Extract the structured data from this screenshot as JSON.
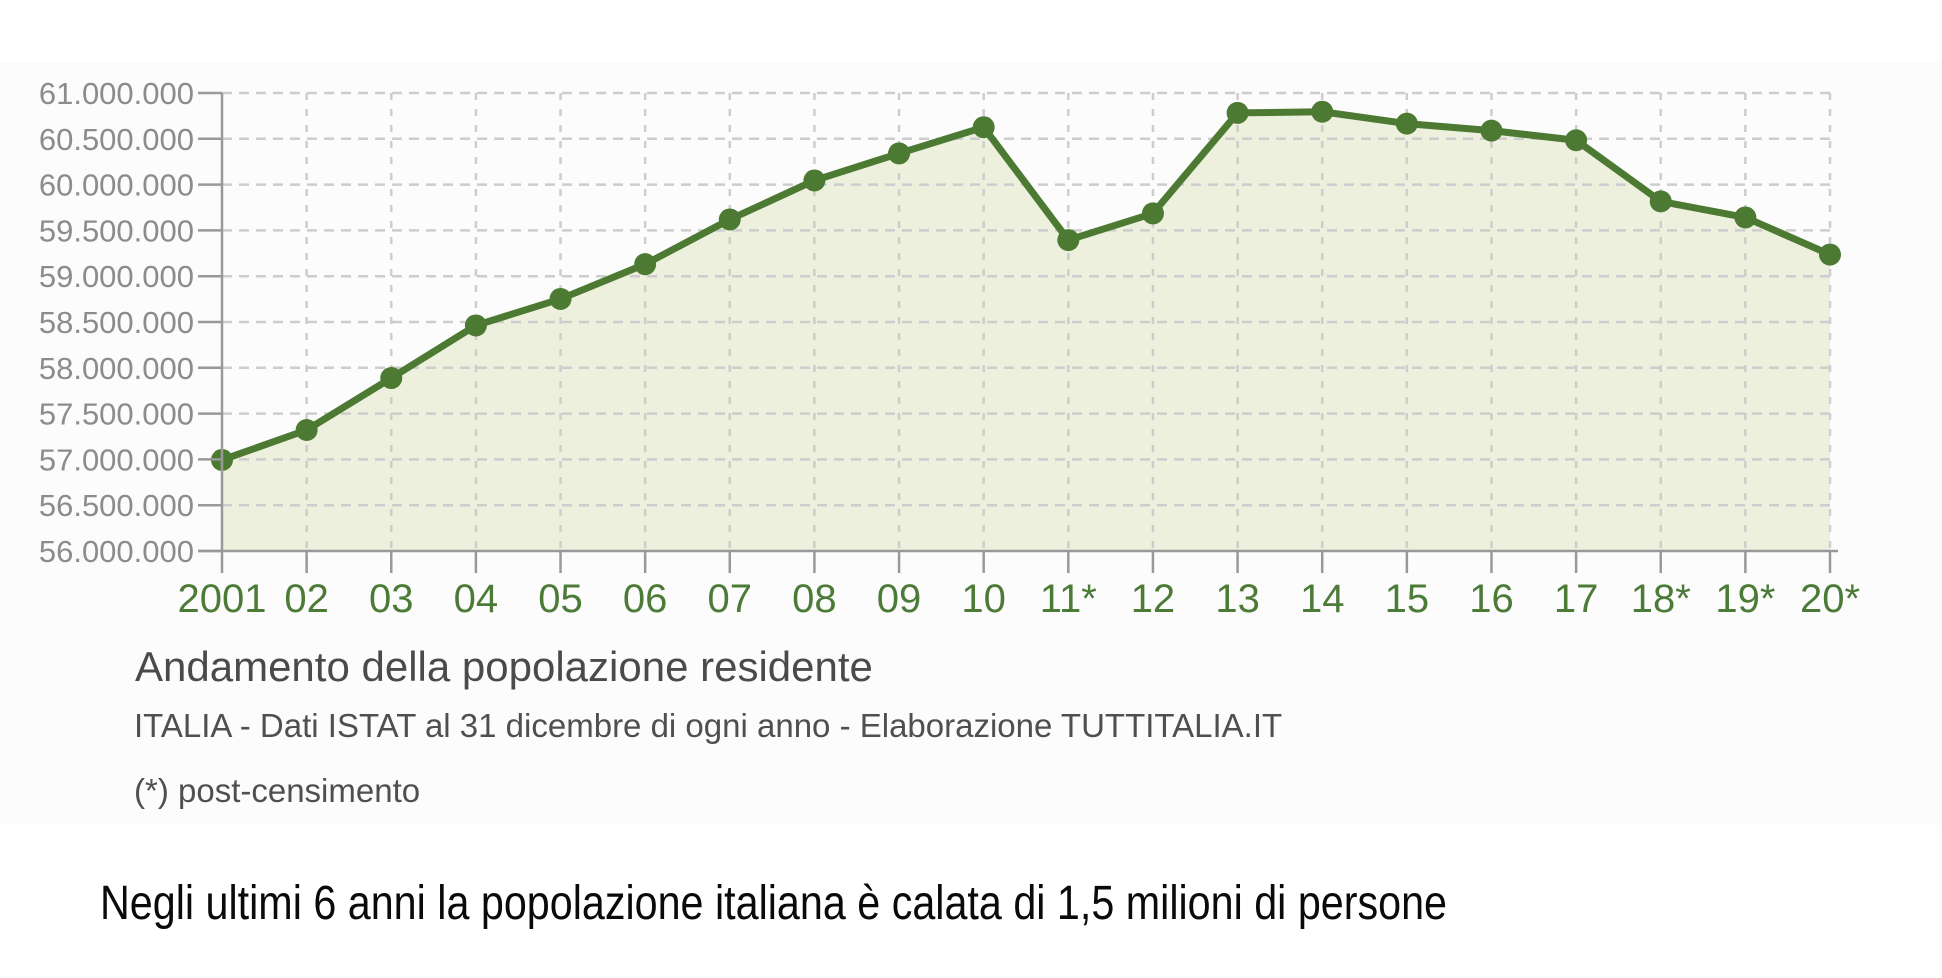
{
  "chart": {
    "title": "Andamento della popolazione residente",
    "subtitle": "ITALIA - Dati ISTAT al 31 dicembre di ogni anno - Elaborazione TUTTITALIA.IT",
    "footnote": "(*) post-censimento"
  },
  "caption": "Negli ultimi 6 anni la popolazione italiana è calata di 1,5 milioni di persone",
  "chart_data": {
    "type": "area",
    "title": "Andamento della popolazione residente",
    "x_labels": [
      "2001",
      "02",
      "03",
      "04",
      "05",
      "06",
      "07",
      "08",
      "09",
      "10",
      "11*",
      "12",
      "13",
      "14",
      "15",
      "16",
      "17",
      "18*",
      "19*",
      "20*"
    ],
    "values": [
      56993742,
      57321070,
      57888245,
      58462375,
      58751711,
      59131287,
      59619290,
      60045068,
      60340328,
      60626442,
      59394207,
      59685227,
      60782668,
      60795612,
      60665551,
      60589445,
      60483973,
      59816673,
      59641488,
      59236213
    ],
    "y_tick_labels": [
      "61.000.000",
      "60.500.000",
      "60.000.000",
      "59.500.000",
      "59.000.000",
      "58.500.000",
      "58.000.000",
      "57.500.000",
      "57.000.000",
      "56.500.000",
      "56.000.000"
    ],
    "ylim": [
      56000000,
      61000000
    ],
    "y_step": 500000,
    "grid": true,
    "legend": "none",
    "footnote_marker_years": [
      "11*",
      "18*",
      "19*",
      "20*"
    ],
    "colors": {
      "line": "#4d7a33",
      "marker": "#4d7a33",
      "fill": "#eef0de",
      "x_label": "#4c7b38",
      "y_label": "#8c8c8c",
      "grid": "#cdcdcd",
      "axis": "#999999"
    }
  }
}
